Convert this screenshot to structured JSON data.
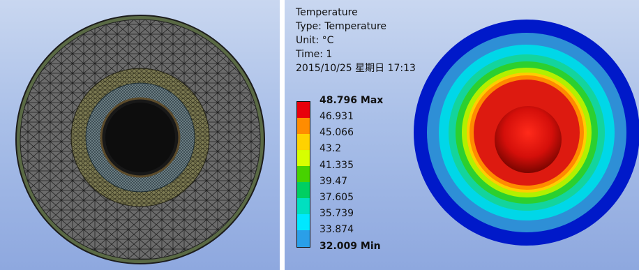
{
  "panels": {
    "mesh": {},
    "result": {
      "info": {
        "title": "Temperature",
        "type": "Type: Temperature",
        "unit": "Unit: °C",
        "time": "Time: 1",
        "datetime": "2015/10/25 星期日 17:13"
      },
      "legend": {
        "labels": [
          "48.796 Max",
          "46.931",
          "45.066",
          "43.2",
          "41.335",
          "39.47",
          "37.605",
          "35.739",
          "33.874",
          "32.009 Min"
        ],
        "colors": [
          "#e8000b",
          "#ff8c00",
          "#ffd200",
          "#d7ff00",
          "#47d200",
          "#00cf62",
          "#00e0c0",
          "#00e8ff",
          "#2a9fe8",
          "#0012ef"
        ]
      },
      "rings_colors": [
        "#0019c9",
        "#2e8fd6",
        "#00d7e8",
        "#13d49d",
        "#2bd02f",
        "#b2f000",
        "#ffcd00",
        "#ff8a00",
        "#dd1a10"
      ]
    }
  }
}
